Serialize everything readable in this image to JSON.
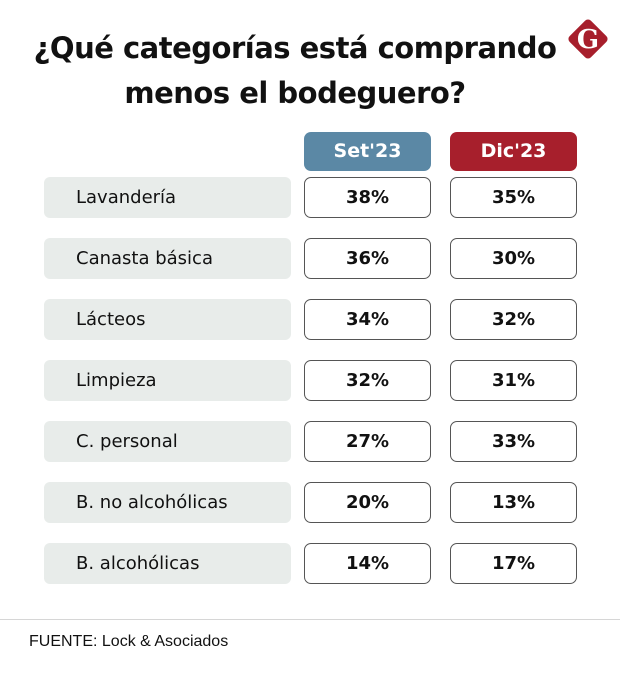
{
  "title_line1": "¿Qué categorías está comprando",
  "title_line2": "menos el bodeguero?",
  "logo_text": "G",
  "colors": {
    "set": "#5b88a5",
    "dic": "#a71f2c",
    "label_bg": "#e8ecea"
  },
  "chart_data": {
    "type": "table",
    "title": "¿Qué categorías está comprando menos el bodeguero?",
    "columns": [
      "Set'23",
      "Dic'23"
    ],
    "rows": [
      {
        "label": "Lavandería",
        "values": [
          "38%",
          "35%"
        ]
      },
      {
        "label": "Canasta básica",
        "values": [
          "36%",
          "30%"
        ]
      },
      {
        "label": "Lácteos",
        "values": [
          "34%",
          "32%"
        ]
      },
      {
        "label": "Limpieza",
        "values": [
          "32%",
          "31%"
        ]
      },
      {
        "label": "C. personal",
        "values": [
          "27%",
          "33%"
        ]
      },
      {
        "label": "B. no alcohólicas",
        "values": [
          "20%",
          "13%"
        ]
      },
      {
        "label": "B. alcohólicas",
        "values": [
          "14%",
          "17%"
        ]
      }
    ]
  },
  "source": "FUENTE: Lock & Asociados"
}
